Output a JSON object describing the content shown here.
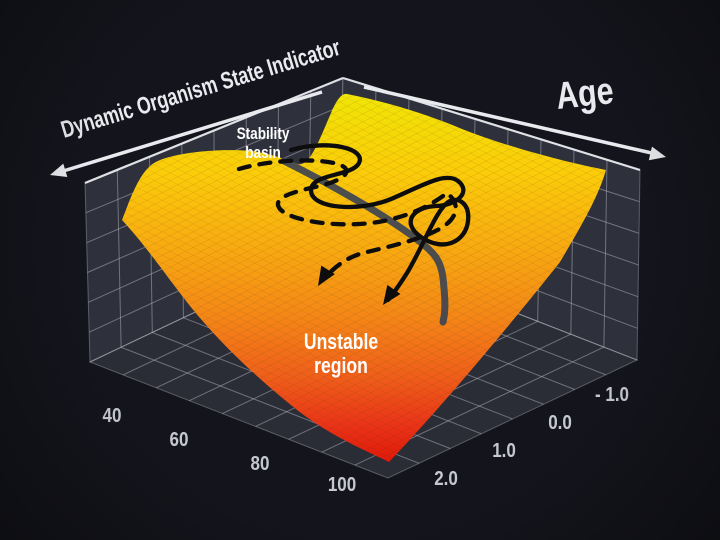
{
  "chart_data": {
    "type": "surface",
    "title": "",
    "x_axis": {
      "label": "Age",
      "tick_labels": [
        "40",
        "60",
        "80",
        "100"
      ],
      "tick_values": [
        40,
        60,
        80,
        100
      ],
      "arrow": "points toward older age (top-right)"
    },
    "y_axis": {
      "label": "Dynamic Organism State Indicator",
      "tick_labels": [
        "- 1.0",
        "0.0",
        "1.0",
        "2.0"
      ],
      "tick_values": [
        -1.0,
        0.0,
        1.0,
        2.0
      ],
      "arrow": "points toward lower indicator values (top-left)"
    },
    "z_axis": {
      "label": "",
      "tick_labels": []
    },
    "annotations": {
      "stability_basin": {
        "line1": "Stability",
        "line2": "basin"
      },
      "unstable_region": {
        "line1": "Unstable",
        "line2": "region"
      }
    },
    "surface": {
      "description": "Stability-potential landscape: a high yellow plateau with a stability basin at younger ages, falling steeply into a red unstable region at high age and high indicator values",
      "relative_height_grid": {
        "age_rows": [
          20,
          40,
          60,
          80,
          100
        ],
        "indicator_cols": [
          -1.0,
          0.0,
          1.0,
          2.0
        ],
        "values": [
          [
            0.95,
            0.9,
            0.88,
            0.85
          ],
          [
            0.92,
            0.8,
            0.75,
            0.7
          ],
          [
            0.9,
            0.7,
            0.55,
            0.45
          ],
          [
            0.85,
            0.55,
            0.3,
            0.15
          ],
          [
            0.8,
            0.4,
            0.1,
            0.0
          ]
        ]
      }
    },
    "trajectories": [
      {
        "name": "mean trajectory",
        "style": "thick solid",
        "color": "#3d4452",
        "arrowhead": false
      },
      {
        "name": "oscillating trajectory (solid)",
        "style": "solid",
        "color": "#0d0d0d",
        "arrowhead": true
      },
      {
        "name": "oscillating trajectory (dashed)",
        "style": "dashed",
        "color": "#0d0d0d",
        "arrowhead": true
      }
    ],
    "colors": {
      "background": "#14151c",
      "wall": "#2e313c",
      "floor": "#2a2d36",
      "grid": "#b3b6c0",
      "axis": "#e9eaee",
      "surface_high": "#f0e606",
      "surface_mid": "#f6a013",
      "surface_low": "#dd1507"
    },
    "legend_position": "none",
    "grid_on": true
  }
}
